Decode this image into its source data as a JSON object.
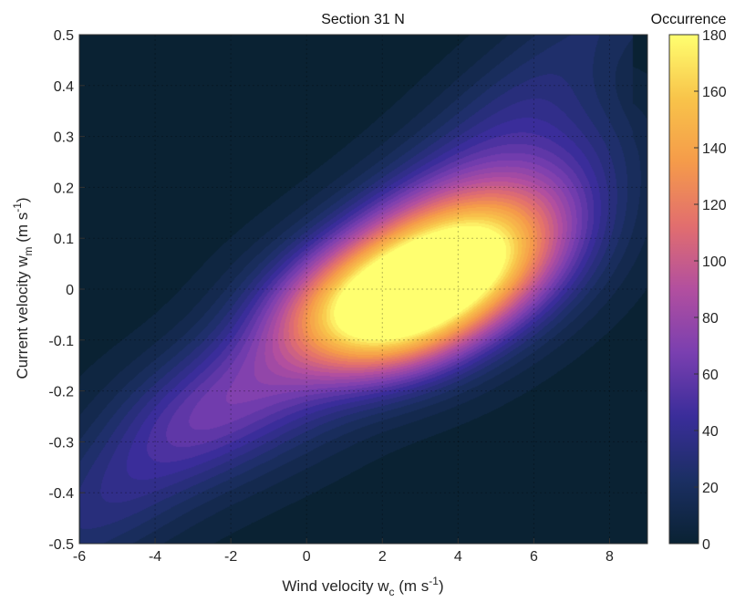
{
  "chart_data": {
    "type": "heatmap",
    "title": "Section 31 N",
    "xlabel": {
      "main": "Wind velocity w",
      "sub": "c",
      "units_pre": " (m s",
      "units_sup": "-1",
      "units_post": ")"
    },
    "ylabel": {
      "main": "Current velocity w",
      "sub": "m",
      "units_pre": " (m s",
      "units_sup": "-1",
      "units_post": ")"
    },
    "xlim": [
      -6,
      9
    ],
    "ylim": [
      -0.5,
      0.5
    ],
    "xticks": [
      "-6",
      "-4",
      "-2",
      "0",
      "2",
      "4",
      "6",
      "8"
    ],
    "yticks": [
      "-0.5",
      "-0.4",
      "-0.3",
      "-0.2",
      "-0.1",
      "0",
      "0.1",
      "0.2",
      "0.3",
      "0.4",
      "0.5"
    ],
    "grid": "dashed",
    "colorbar": {
      "label": "Occurrence",
      "range": [
        0,
        180
      ],
      "ticks": [
        "0",
        "20",
        "40",
        "60",
        "80",
        "100",
        "120",
        "140",
        "160",
        "180"
      ],
      "colors": [
        "#0a2233",
        "#1b2f63",
        "#3a2d9a",
        "#7a3fb0",
        "#b24f9f",
        "#e26e6e",
        "#f59b4a",
        "#f8c44a",
        "#ffff70"
      ]
    },
    "density": {
      "description": "occurrence counts distribution of wind vs current velocity",
      "peaks": [
        {
          "x": 3.0,
          "y": 0.0,
          "value": 170
        },
        {
          "x": 4.0,
          "y": 0.05,
          "value": 165
        },
        {
          "x": 2.0,
          "y": -0.05,
          "value": 150
        },
        {
          "x": 5.0,
          "y": 0.1,
          "value": 130
        },
        {
          "x": 1.0,
          "y": -0.08,
          "value": 120
        },
        {
          "x": 6.0,
          "y": 0.18,
          "value": 75
        },
        {
          "x": -1.0,
          "y": -0.2,
          "value": 60
        },
        {
          "x": -3.0,
          "y": -0.28,
          "value": 50
        },
        {
          "x": 7.0,
          "y": 0.3,
          "value": 35
        },
        {
          "x": -5.0,
          "y": -0.4,
          "value": 20
        }
      ]
    }
  }
}
